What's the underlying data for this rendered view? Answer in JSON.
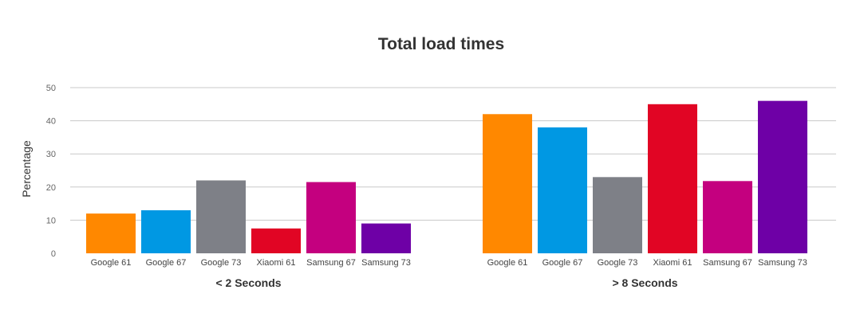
{
  "chart_data": {
    "type": "bar",
    "title": "Total load times",
    "xlabel": "",
    "ylabel": "Percentage",
    "ylim": [
      0,
      50
    ],
    "yticks": [
      0,
      10,
      20,
      30,
      40,
      50
    ],
    "grid": true,
    "groups": [
      {
        "label": "< 2 Seconds",
        "bars": [
          {
            "label": "Google 61",
            "value": 12,
            "color": "#ff8800"
          },
          {
            "label": "Google 67",
            "value": 13,
            "color": "#0098e3"
          },
          {
            "label": "Google 73",
            "value": 22,
            "color": "#7e8087"
          },
          {
            "label": "Xiaomi 61",
            "value": 7.5,
            "color": "#e10524"
          },
          {
            "label": "Samsung 67",
            "value": 21.5,
            "color": "#c4007f"
          },
          {
            "label": "Samsung 73",
            "value": 9,
            "color": "#6e00a6"
          }
        ]
      },
      {
        "label": "> 8 Seconds",
        "bars": [
          {
            "label": "Google 61",
            "value": 42,
            "color": "#ff8800"
          },
          {
            "label": "Google 67",
            "value": 38,
            "color": "#0098e3"
          },
          {
            "label": "Google 73",
            "value": 23,
            "color": "#7e8087"
          },
          {
            "label": "Xiaomi 61",
            "value": 45,
            "color": "#e10524"
          },
          {
            "label": "Samsung 67",
            "value": 21.8,
            "color": "#c4007f"
          },
          {
            "label": "Samsung 73",
            "value": 46,
            "color": "#6e00a6"
          }
        ]
      }
    ]
  }
}
